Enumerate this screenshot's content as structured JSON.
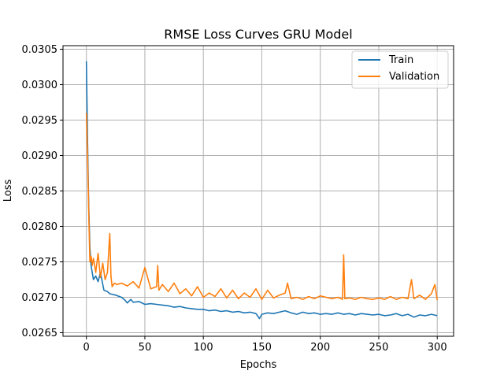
{
  "chart_data": {
    "type": "line",
    "title": "RMSE Loss Curves GRU Model",
    "xlabel": "Epochs",
    "ylabel": "Loss",
    "xlim": [
      -20,
      314
    ],
    "ylim": [
      0.02645,
      0.03055
    ],
    "xticks": [
      0,
      50,
      100,
      150,
      200,
      250,
      300
    ],
    "yticks": [
      0.0265,
      0.027,
      0.0275,
      0.028,
      0.0285,
      0.029,
      0.0295,
      0.03,
      0.0305
    ],
    "ytick_labels": [
      "0.0265",
      "0.0270",
      "0.0275",
      "0.0280",
      "0.0285",
      "0.0290",
      "0.0295",
      "0.0300",
      "0.0305"
    ],
    "grid": true,
    "legend_position": "top-right",
    "series": [
      {
        "name": "Train",
        "color": "#1f77b4",
        "x": [
          0,
          1,
          2,
          3,
          4,
          5,
          6,
          8,
          10,
          12,
          15,
          18,
          20,
          25,
          30,
          33,
          35,
          38,
          40,
          45,
          50,
          55,
          60,
          65,
          70,
          75,
          80,
          85,
          90,
          95,
          100,
          105,
          110,
          115,
          120,
          125,
          130,
          135,
          140,
          145,
          148,
          150,
          155,
          160,
          165,
          170,
          175,
          180,
          185,
          190,
          195,
          200,
          205,
          210,
          215,
          220,
          225,
          230,
          235,
          240,
          245,
          250,
          255,
          260,
          265,
          270,
          275,
          280,
          285,
          290,
          295,
          300
        ],
        "y": [
          0.03033,
          0.0292,
          0.0283,
          0.0277,
          0.02745,
          0.02735,
          0.02725,
          0.0273,
          0.02722,
          0.02735,
          0.0271,
          0.02708,
          0.02705,
          0.02703,
          0.027,
          0.02696,
          0.02692,
          0.02697,
          0.02693,
          0.02694,
          0.0269,
          0.02691,
          0.0269,
          0.02689,
          0.02688,
          0.02686,
          0.02687,
          0.02685,
          0.02684,
          0.02683,
          0.02683,
          0.02681,
          0.02682,
          0.0268,
          0.02681,
          0.02679,
          0.0268,
          0.02678,
          0.02679,
          0.02677,
          0.0267,
          0.02676,
          0.02678,
          0.02677,
          0.02679,
          0.02681,
          0.02678,
          0.02676,
          0.02679,
          0.02677,
          0.02678,
          0.02676,
          0.02677,
          0.02676,
          0.02678,
          0.02676,
          0.02677,
          0.02675,
          0.02677,
          0.02676,
          0.02675,
          0.02676,
          0.02674,
          0.02675,
          0.02677,
          0.02674,
          0.02676,
          0.02672,
          0.02675,
          0.02674,
          0.02676,
          0.02674
        ]
      },
      {
        "name": "Validation",
        "color": "#ff7f0e",
        "x": [
          0,
          1,
          2,
          3,
          4,
          5,
          6,
          8,
          10,
          11,
          12,
          14,
          16,
          18,
          20,
          21,
          22,
          24,
          26,
          30,
          35,
          40,
          45,
          50,
          55,
          60,
          61,
          62,
          65,
          70,
          75,
          80,
          85,
          90,
          95,
          100,
          105,
          110,
          115,
          120,
          125,
          130,
          135,
          140,
          145,
          150,
          155,
          160,
          165,
          170,
          172,
          175,
          180,
          185,
          190,
          195,
          200,
          205,
          210,
          215,
          219,
          220,
          221,
          225,
          230,
          235,
          240,
          245,
          250,
          255,
          260,
          265,
          270,
          275,
          278,
          280,
          285,
          290,
          295,
          298,
          300
        ],
        "y": [
          0.0296,
          0.029,
          0.0282,
          0.0275,
          0.02758,
          0.02745,
          0.02755,
          0.02735,
          0.02762,
          0.02745,
          0.02728,
          0.02748,
          0.02725,
          0.02735,
          0.0279,
          0.0273,
          0.02715,
          0.0272,
          0.02718,
          0.0272,
          0.02716,
          0.02722,
          0.02713,
          0.02742,
          0.02712,
          0.02715,
          0.02745,
          0.0271,
          0.02718,
          0.02708,
          0.0272,
          0.02705,
          0.02712,
          0.02702,
          0.02715,
          0.027,
          0.02706,
          0.02701,
          0.02712,
          0.02699,
          0.0271,
          0.02698,
          0.02706,
          0.027,
          0.02712,
          0.02697,
          0.0271,
          0.02699,
          0.02703,
          0.02706,
          0.0272,
          0.02698,
          0.027,
          0.02697,
          0.02701,
          0.02698,
          0.02702,
          0.027,
          0.02698,
          0.027,
          0.02697,
          0.0276,
          0.02698,
          0.02699,
          0.02697,
          0.027,
          0.02698,
          0.02697,
          0.02699,
          0.02697,
          0.02701,
          0.02697,
          0.027,
          0.02698,
          0.02725,
          0.02698,
          0.02703,
          0.02697,
          0.02705,
          0.02718,
          0.02696
        ]
      }
    ]
  }
}
